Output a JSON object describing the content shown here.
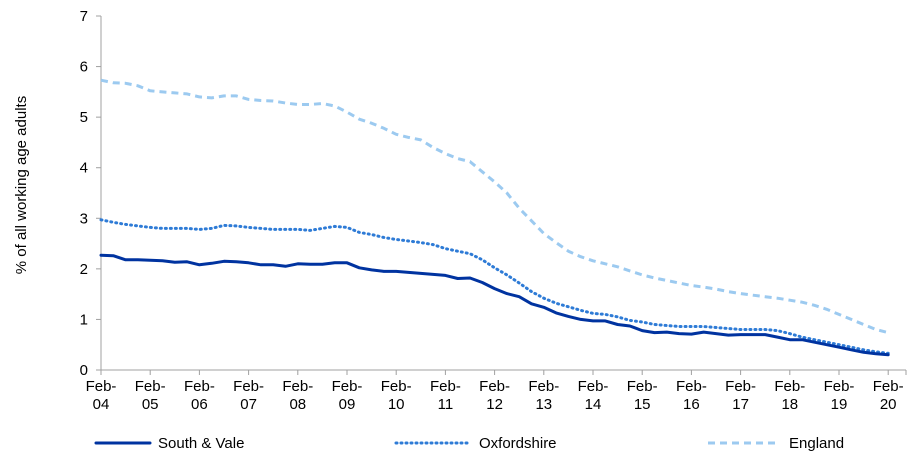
{
  "chart_data": {
    "type": "line",
    "title": "",
    "xlabel": "",
    "ylabel": "% of all working age adults",
    "ylim": [
      0,
      7
    ],
    "yticks": [
      0,
      1,
      2,
      3,
      4,
      5,
      6,
      7
    ],
    "grid": false,
    "legend_position": "bottom",
    "x_start": "Feb-04",
    "x_step_months": 3,
    "x_ticks": [
      {
        "top": "Feb-",
        "bottom": "04",
        "year": 2004
      },
      {
        "top": "Feb-",
        "bottom": "05",
        "year": 2005
      },
      {
        "top": "Feb-",
        "bottom": "06",
        "year": 2006
      },
      {
        "top": "Feb-",
        "bottom": "07",
        "year": 2007
      },
      {
        "top": "Feb-",
        "bottom": "08",
        "year": 2008
      },
      {
        "top": "Feb-",
        "bottom": "09",
        "year": 2009
      },
      {
        "top": "Feb-",
        "bottom": "10",
        "year": 2010
      },
      {
        "top": "Feb-",
        "bottom": "11",
        "year": 2011
      },
      {
        "top": "Feb-",
        "bottom": "12",
        "year": 2012
      },
      {
        "top": "Feb-",
        "bottom": "13",
        "year": 2013
      },
      {
        "top": "Feb-",
        "bottom": "14",
        "year": 2014
      },
      {
        "top": "Feb-",
        "bottom": "15",
        "year": 2015
      },
      {
        "top": "Feb-",
        "bottom": "16",
        "year": 2016
      },
      {
        "top": "Feb-",
        "bottom": "17",
        "year": 2017
      },
      {
        "top": "Feb-",
        "bottom": "18",
        "year": 2018
      },
      {
        "top": "Feb-",
        "bottom": "19",
        "year": 2019
      },
      {
        "top": "Feb-",
        "bottom": "20",
        "year": 2020
      }
    ],
    "series": [
      {
        "name": "South & Vale",
        "color": "#0033a0",
        "style": "solid",
        "values": [
          2.27,
          2.26,
          2.18,
          2.18,
          2.17,
          2.16,
          2.13,
          2.14,
          2.08,
          2.11,
          2.15,
          2.14,
          2.12,
          2.08,
          2.08,
          2.05,
          2.1,
          2.09,
          2.09,
          2.12,
          2.12,
          2.02,
          1.98,
          1.95,
          1.95,
          1.93,
          1.91,
          1.89,
          1.87,
          1.81,
          1.82,
          1.73,
          1.61,
          1.51,
          1.45,
          1.31,
          1.24,
          1.13,
          1.06,
          1.0,
          0.97,
          0.97,
          0.9,
          0.87,
          0.78,
          0.74,
          0.75,
          0.72,
          0.71,
          0.75,
          0.72,
          0.69,
          0.7,
          0.7,
          0.7,
          0.65,
          0.6,
          0.6,
          0.55,
          0.5,
          0.45,
          0.4,
          0.35,
          0.32,
          0.3
        ]
      },
      {
        "name": "Oxfordshire",
        "color": "#2e7bd6",
        "style": "dotted",
        "values": [
          2.97,
          2.92,
          2.88,
          2.85,
          2.82,
          2.8,
          2.8,
          2.8,
          2.78,
          2.8,
          2.86,
          2.85,
          2.82,
          2.8,
          2.78,
          2.78,
          2.78,
          2.76,
          2.8,
          2.84,
          2.82,
          2.72,
          2.68,
          2.62,
          2.58,
          2.55,
          2.52,
          2.48,
          2.4,
          2.35,
          2.3,
          2.18,
          2.02,
          1.88,
          1.72,
          1.55,
          1.42,
          1.32,
          1.25,
          1.18,
          1.12,
          1.1,
          1.05,
          0.98,
          0.95,
          0.9,
          0.88,
          0.86,
          0.86,
          0.86,
          0.84,
          0.82,
          0.8,
          0.8,
          0.8,
          0.78,
          0.72,
          0.65,
          0.6,
          0.55,
          0.5,
          0.45,
          0.4,
          0.36,
          0.33
        ]
      },
      {
        "name": "England",
        "color": "#9ccaf0",
        "style": "dashed",
        "values": [
          5.73,
          5.68,
          5.67,
          5.62,
          5.52,
          5.5,
          5.48,
          5.46,
          5.4,
          5.38,
          5.42,
          5.42,
          5.35,
          5.33,
          5.32,
          5.28,
          5.25,
          5.25,
          5.27,
          5.22,
          5.1,
          4.96,
          4.88,
          4.78,
          4.66,
          4.6,
          4.55,
          4.4,
          4.28,
          4.18,
          4.12,
          3.92,
          3.72,
          3.5,
          3.2,
          2.95,
          2.7,
          2.52,
          2.35,
          2.24,
          2.16,
          2.1,
          2.04,
          1.96,
          1.88,
          1.82,
          1.77,
          1.72,
          1.67,
          1.64,
          1.6,
          1.55,
          1.51,
          1.48,
          1.45,
          1.42,
          1.38,
          1.34,
          1.28,
          1.2,
          1.1,
          1.0,
          0.9,
          0.8,
          0.74
        ]
      }
    ]
  }
}
